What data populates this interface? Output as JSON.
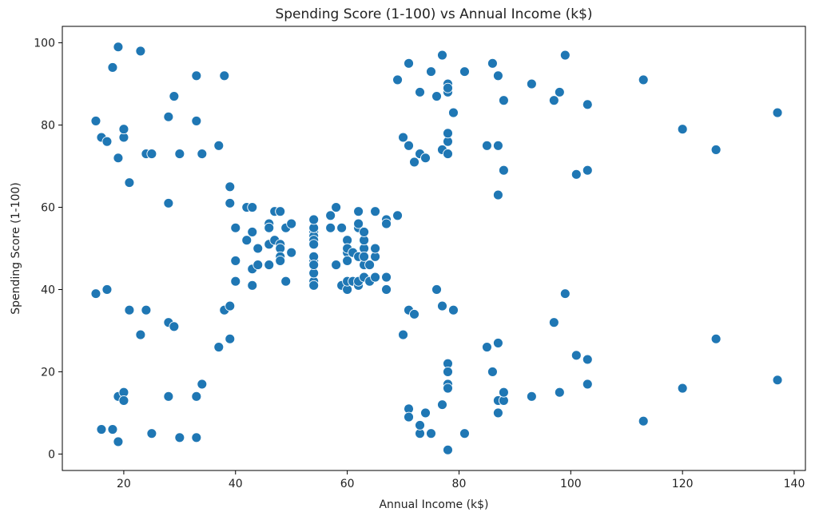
{
  "chart_data": {
    "type": "scatter",
    "title": "Spending Score (1-100) vs Annual Income (k$)",
    "xlabel": "Annual Income (k$)",
    "ylabel": "Spending Score (1-100)",
    "xlim": [
      9,
      142
    ],
    "ylim": [
      -4,
      104
    ],
    "xticks": [
      20,
      40,
      60,
      80,
      100,
      120,
      140
    ],
    "yticks": [
      0,
      20,
      40,
      60,
      80,
      100
    ],
    "grid": false,
    "legend": "none",
    "point_color": "#1f77b4",
    "points": [
      [
        15,
        39
      ],
      [
        15,
        81
      ],
      [
        16,
        6
      ],
      [
        16,
        77
      ],
      [
        17,
        40
      ],
      [
        17,
        76
      ],
      [
        18,
        6
      ],
      [
        18,
        94
      ],
      [
        19,
        3
      ],
      [
        19,
        72
      ],
      [
        19,
        14
      ],
      [
        19,
        99
      ],
      [
        20,
        15
      ],
      [
        20,
        77
      ],
      [
        20,
        13
      ],
      [
        20,
        79
      ],
      [
        21,
        35
      ],
      [
        21,
        66
      ],
      [
        23,
        29
      ],
      [
        23,
        98
      ],
      [
        24,
        35
      ],
      [
        24,
        73
      ],
      [
        25,
        5
      ],
      [
        25,
        73
      ],
      [
        28,
        14
      ],
      [
        28,
        82
      ],
      [
        28,
        32
      ],
      [
        28,
        61
      ],
      [
        29,
        31
      ],
      [
        29,
        87
      ],
      [
        30,
        4
      ],
      [
        30,
        73
      ],
      [
        33,
        4
      ],
      [
        33,
        92
      ],
      [
        33,
        14
      ],
      [
        33,
        81
      ],
      [
        34,
        17
      ],
      [
        34,
        73
      ],
      [
        37,
        26
      ],
      [
        37,
        75
      ],
      [
        38,
        35
      ],
      [
        38,
        92
      ],
      [
        39,
        36
      ],
      [
        39,
        61
      ],
      [
        39,
        28
      ],
      [
        39,
        65
      ],
      [
        40,
        55
      ],
      [
        40,
        47
      ],
      [
        40,
        42
      ],
      [
        40,
        42
      ],
      [
        42,
        52
      ],
      [
        42,
        60
      ],
      [
        43,
        54
      ],
      [
        43,
        60
      ],
      [
        43,
        45
      ],
      [
        43,
        41
      ],
      [
        44,
        50
      ],
      [
        44,
        46
      ],
      [
        46,
        51
      ],
      [
        46,
        46
      ],
      [
        46,
        56
      ],
      [
        46,
        55
      ],
      [
        47,
        52
      ],
      [
        47,
        59
      ],
      [
        48,
        51
      ],
      [
        48,
        59
      ],
      [
        48,
        50
      ],
      [
        48,
        48
      ],
      [
        48,
        59
      ],
      [
        48,
        47
      ],
      [
        49,
        55
      ],
      [
        49,
        42
      ],
      [
        50,
        49
      ],
      [
        50,
        56
      ],
      [
        54,
        47
      ],
      [
        54,
        54
      ],
      [
        54,
        53
      ],
      [
        54,
        48
      ],
      [
        54,
        52
      ],
      [
        54,
        42
      ],
      [
        54,
        51
      ],
      [
        54,
        55
      ],
      [
        54,
        41
      ],
      [
        54,
        44
      ],
      [
        54,
        57
      ],
      [
        54,
        46
      ],
      [
        57,
        58
      ],
      [
        57,
        55
      ],
      [
        58,
        60
      ],
      [
        58,
        46
      ],
      [
        59,
        55
      ],
      [
        59,
        41
      ],
      [
        60,
        49
      ],
      [
        60,
        40
      ],
      [
        60,
        42
      ],
      [
        60,
        52
      ],
      [
        60,
        47
      ],
      [
        60,
        50
      ],
      [
        61,
        42
      ],
      [
        61,
        49
      ],
      [
        62,
        41
      ],
      [
        62,
        48
      ],
      [
        62,
        59
      ],
      [
        62,
        55
      ],
      [
        62,
        56
      ],
      [
        62,
        42
      ],
      [
        63,
        50
      ],
      [
        63,
        46
      ],
      [
        63,
        43
      ],
      [
        63,
        48
      ],
      [
        63,
        52
      ],
      [
        63,
        54
      ],
      [
        64,
        42
      ],
      [
        64,
        46
      ],
      [
        65,
        48
      ],
      [
        65,
        50
      ],
      [
        65,
        43
      ],
      [
        65,
        59
      ],
      [
        67,
        43
      ],
      [
        67,
        57
      ],
      [
        67,
        56
      ],
      [
        67,
        40
      ],
      [
        69,
        58
      ],
      [
        69,
        91
      ],
      [
        70,
        29
      ],
      [
        70,
        77
      ],
      [
        71,
        35
      ],
      [
        71,
        95
      ],
      [
        71,
        11
      ],
      [
        71,
        75
      ],
      [
        71,
        9
      ],
      [
        72,
        34
      ],
      [
        72,
        71
      ],
      [
        73,
        5
      ],
      [
        73,
        88
      ],
      [
        73,
        7
      ],
      [
        73,
        73
      ],
      [
        74,
        10
      ],
      [
        74,
        72
      ],
      [
        75,
        5
      ],
      [
        75,
        93
      ],
      [
        76,
        40
      ],
      [
        76,
        87
      ],
      [
        77,
        12
      ],
      [
        77,
        97
      ],
      [
        77,
        36
      ],
      [
        77,
        74
      ],
      [
        78,
        22
      ],
      [
        78,
        90
      ],
      [
        78,
        17
      ],
      [
        78,
        88
      ],
      [
        78,
        20
      ],
      [
        78,
        76
      ],
      [
        78,
        16
      ],
      [
        78,
        89
      ],
      [
        78,
        1
      ],
      [
        78,
        78
      ],
      [
        78,
        1
      ],
      [
        78,
        73
      ],
      [
        79,
        35
      ],
      [
        79,
        83
      ],
      [
        81,
        5
      ],
      [
        81,
        93
      ],
      [
        85,
        26
      ],
      [
        85,
        75
      ],
      [
        86,
        20
      ],
      [
        86,
        95
      ],
      [
        87,
        27
      ],
      [
        87,
        63
      ],
      [
        87,
        13
      ],
      [
        87,
        75
      ],
      [
        87,
        10
      ],
      [
        87,
        92
      ],
      [
        88,
        13
      ],
      [
        88,
        86
      ],
      [
        88,
        15
      ],
      [
        88,
        69
      ],
      [
        93,
        14
      ],
      [
        93,
        90
      ],
      [
        97,
        32
      ],
      [
        97,
        86
      ],
      [
        98,
        15
      ],
      [
        98,
        88
      ],
      [
        99,
        39
      ],
      [
        99,
        97
      ],
      [
        101,
        24
      ],
      [
        101,
        68
      ],
      [
        103,
        17
      ],
      [
        103,
        85
      ],
      [
        103,
        23
      ],
      [
        103,
        69
      ],
      [
        113,
        8
      ],
      [
        113,
        91
      ],
      [
        120,
        16
      ],
      [
        120,
        79
      ],
      [
        126,
        28
      ],
      [
        126,
        74
      ],
      [
        137,
        18
      ],
      [
        137,
        83
      ]
    ]
  }
}
